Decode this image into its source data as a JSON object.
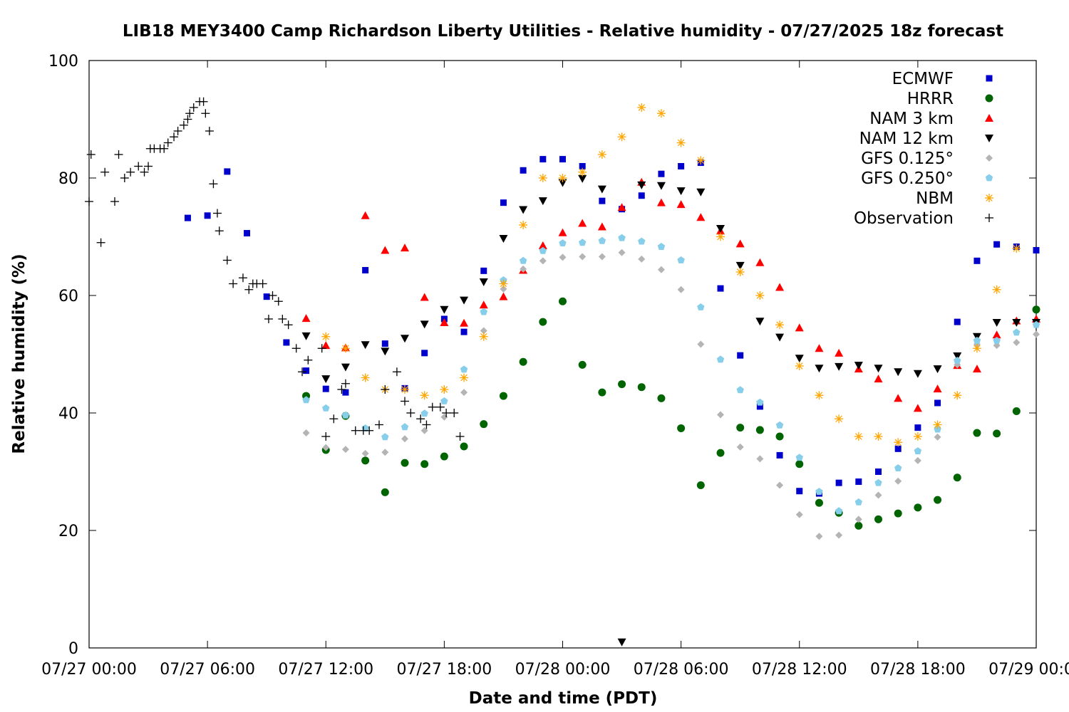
{
  "chart_data": {
    "type": "scatter",
    "title": "LIB18 MEY3400 Camp Richardson Liberty Utilities - Relative humidity - 07/27/2025 18z forecast",
    "xlabel": "Date and time (PDT)",
    "ylabel": "Relative humidity (%)",
    "x_unit": "hours since 07/27 00:00 PDT",
    "xlim": [
      0,
      48
    ],
    "ylim": [
      0,
      100
    ],
    "xtick_labels": [
      "07/27 00:00",
      "07/27 06:00",
      "07/27 12:00",
      "07/27 18:00",
      "07/28 00:00",
      "07/28 06:00",
      "07/28 12:00",
      "07/28 18:00",
      "07/29 00:00"
    ],
    "ytick_labels": [
      "0",
      "20",
      "40",
      "60",
      "80",
      "100"
    ],
    "legend_position": "top-right",
    "grid": false,
    "series": [
      {
        "name": "ECMWF",
        "color": "#0000cc",
        "marker": "square",
        "x": [
          5,
          6,
          7,
          8,
          9,
          10,
          11,
          12,
          13,
          14,
          15,
          16,
          17,
          18,
          19,
          20,
          21,
          22,
          23,
          24,
          25,
          26,
          27,
          28,
          29,
          30,
          31,
          32,
          33,
          34,
          35,
          36,
          37,
          38,
          39,
          40,
          41,
          42,
          43,
          44,
          45,
          46,
          47,
          48
        ],
        "y": [
          73.2,
          73.6,
          81.1,
          70.6,
          59.8,
          52.0,
          47.2,
          44.1,
          43.5,
          64.3,
          51.8,
          44.2,
          50.2,
          56.0,
          53.8,
          64.2,
          75.8,
          81.3,
          83.2,
          83.2,
          82.0,
          76.1,
          74.7,
          77.0,
          80.7,
          82.0,
          82.6,
          61.2,
          49.8,
          41.1,
          32.8,
          26.7,
          26.3,
          28.1,
          28.3,
          30.0,
          33.9,
          37.5,
          41.7,
          55.5,
          65.9,
          68.7,
          68.3,
          67.7
        ]
      },
      {
        "name": "HRRR",
        "color": "#006400",
        "marker": "circle",
        "x": [
          11,
          12,
          13,
          14,
          15,
          16,
          17,
          18,
          19,
          20,
          21,
          22,
          23,
          24,
          25,
          26,
          27,
          28,
          29,
          30,
          31,
          32,
          33,
          34,
          35,
          36,
          37,
          38,
          39,
          40,
          41,
          42,
          43,
          44,
          45,
          46,
          47,
          48
        ],
        "y": [
          42.9,
          33.7,
          39.5,
          31.9,
          26.5,
          31.5,
          31.3,
          32.6,
          34.3,
          38.1,
          42.9,
          48.7,
          55.5,
          59.0,
          48.2,
          43.5,
          44.9,
          44.4,
          42.5,
          37.4,
          27.7,
          33.2,
          37.5,
          37.1,
          36.0,
          31.3,
          24.7,
          23.0,
          20.8,
          21.9,
          22.9,
          23.9,
          25.2,
          29.0,
          36.6,
          36.5,
          40.3,
          57.6
        ]
      },
      {
        "name": "NAM 3 km",
        "color": "#ff0000",
        "marker": "triangle-up",
        "x": [
          11,
          12,
          13,
          14,
          15,
          16,
          17,
          18,
          19,
          20,
          21,
          22,
          23,
          24,
          25,
          26,
          27,
          28,
          29,
          30,
          31,
          32,
          33,
          34,
          35,
          36,
          37,
          38,
          39,
          40,
          41,
          42,
          43,
          44,
          45,
          46,
          47,
          48
        ],
        "y": [
          56.1,
          51.5,
          51.1,
          73.6,
          67.7,
          68.1,
          59.7,
          55.4,
          55.3,
          58.4,
          59.8,
          64.3,
          68.5,
          70.7,
          72.3,
          71.7,
          75.0,
          79.3,
          75.8,
          75.5,
          73.3,
          71.0,
          68.8,
          65.6,
          61.4,
          54.5,
          51.0,
          50.2,
          47.5,
          45.8,
          42.5,
          40.8,
          44.1,
          48.1,
          47.5,
          53.3,
          55.7,
          56.0
        ]
      },
      {
        "name": "NAM 12 km",
        "color": "#000000",
        "marker": "triangle-down",
        "x": [
          11,
          12,
          13,
          14,
          15,
          16,
          17,
          18,
          19,
          20,
          21,
          22,
          23,
          24,
          25,
          26,
          27,
          28,
          29,
          30,
          31,
          32,
          33,
          34,
          35,
          36,
          37,
          38,
          39,
          40,
          41,
          42,
          43,
          44,
          45,
          46,
          47,
          48
        ],
        "y": [
          53.1,
          45.8,
          47.8,
          51.6,
          50.5,
          52.7,
          55.1,
          57.6,
          59.2,
          62.3,
          69.7,
          74.6,
          76.1,
          79.2,
          79.9,
          78.1,
          1.0,
          78.8,
          78.7,
          77.8,
          77.6,
          71.4,
          65.1,
          55.6,
          52.9,
          49.3,
          47.6,
          47.9,
          48.1,
          47.6,
          47.0,
          46.7,
          47.5,
          49.7,
          53.0,
          55.4,
          55.4,
          55.4
        ]
      },
      {
        "name": "GFS 0.125°",
        "color": "#b4b4b4",
        "marker": "diamond",
        "x": [
          11,
          12,
          13,
          14,
          15,
          16,
          17,
          18,
          19,
          20,
          21,
          22,
          23,
          24,
          25,
          26,
          27,
          28,
          29,
          30,
          31,
          32,
          33,
          34,
          35,
          36,
          37,
          38,
          39,
          40,
          41,
          42,
          43,
          44,
          45,
          46,
          47,
          48
        ],
        "y": [
          36.6,
          34.1,
          33.8,
          33.1,
          33.3,
          35.6,
          37.0,
          39.3,
          43.5,
          54.0,
          61.1,
          64.5,
          65.9,
          66.5,
          66.6,
          66.6,
          67.3,
          66.2,
          64.4,
          61.0,
          51.7,
          39.7,
          34.2,
          32.2,
          27.7,
          22.7,
          19.0,
          19.2,
          21.9,
          26.0,
          28.4,
          31.9,
          35.9,
          48.2,
          51.7,
          51.5,
          52.0,
          53.4
        ]
      },
      {
        "name": "GFS 0.250°",
        "color": "#87ceeb",
        "marker": "pentagon",
        "x": [
          11,
          12,
          13,
          14,
          15,
          16,
          17,
          18,
          19,
          20,
          21,
          22,
          23,
          24,
          25,
          26,
          27,
          28,
          29,
          30,
          31,
          32,
          33,
          34,
          35,
          36,
          37,
          38,
          39,
          40,
          41,
          42,
          43,
          44,
          45,
          46,
          47,
          48
        ],
        "y": [
          42.2,
          40.8,
          39.6,
          37.4,
          35.9,
          37.6,
          39.9,
          42.0,
          47.4,
          57.2,
          62.6,
          65.9,
          67.6,
          68.9,
          69.0,
          69.3,
          69.8,
          69.2,
          68.3,
          66.0,
          58.0,
          49.1,
          43.9,
          41.8,
          37.9,
          32.4,
          26.6,
          23.3,
          24.8,
          28.1,
          30.6,
          33.5,
          37.2,
          48.9,
          52.3,
          52.3,
          53.7,
          55.0
        ]
      },
      {
        "name": "NBM",
        "color": "#ffa500",
        "marker": "asterisk",
        "x": [
          12,
          13,
          14,
          15,
          16,
          17,
          18,
          19,
          20,
          21,
          22,
          23,
          24,
          25,
          26,
          27,
          28,
          29,
          30,
          31,
          32,
          33,
          34,
          35,
          36,
          37,
          38,
          39,
          40,
          41,
          42,
          43,
          44,
          45,
          46,
          47
        ],
        "y": [
          53.0,
          51.0,
          46.0,
          44.0,
          44.0,
          43.0,
          44.0,
          46.0,
          53.0,
          62.0,
          72.0,
          80.0,
          80.0,
          81.0,
          84.0,
          87.0,
          92.0,
          91.0,
          86.0,
          83.0,
          70.0,
          64.0,
          60.0,
          55.0,
          48.0,
          43.0,
          39.0,
          36.0,
          36.0,
          35.0,
          36.0,
          38.0,
          43.0,
          51.0,
          61.0,
          68.0
        ]
      },
      {
        "name": "Observation",
        "color": "#000000",
        "marker": "plus",
        "x": [
          0,
          0.1,
          0.6,
          0.8,
          1.3,
          1.5,
          1.8,
          2.1,
          2.5,
          2.8,
          3.0,
          3.1,
          3.3,
          3.6,
          3.8,
          4.0,
          4.3,
          4.5,
          4.8,
          5.0,
          5.1,
          5.3,
          5.6,
          5.8,
          5.9,
          6.1,
          6.3,
          6.5,
          6.6,
          7.0,
          7.3,
          7.8,
          8.1,
          8.3,
          8.5,
          8.8,
          9.1,
          9.3,
          9.6,
          9.8,
          10.1,
          10.5,
          10.8,
          11.1,
          11.8,
          12.0,
          12.4,
          12.8,
          13.0,
          13.5,
          13.9,
          14.2,
          14.7,
          15.0,
          15.6,
          16.0,
          16.3,
          16.8,
          17.1,
          17.4,
          17.8,
          18.1,
          18.5,
          18.8
        ],
        "y": [
          76,
          84,
          69,
          81,
          76,
          84,
          80,
          81,
          82,
          81,
          82,
          85,
          85,
          85,
          85,
          86,
          87,
          88,
          89,
          90,
          91,
          92,
          93,
          93,
          91,
          88,
          79,
          74,
          71,
          66,
          62,
          63,
          61,
          62,
          62,
          62,
          56,
          60,
          59,
          56,
          55,
          51,
          47,
          49,
          51,
          36,
          39,
          44,
          45,
          37,
          37,
          37,
          38,
          44,
          47,
          42,
          40,
          39,
          38,
          41,
          41,
          40,
          40,
          36
        ]
      }
    ]
  }
}
